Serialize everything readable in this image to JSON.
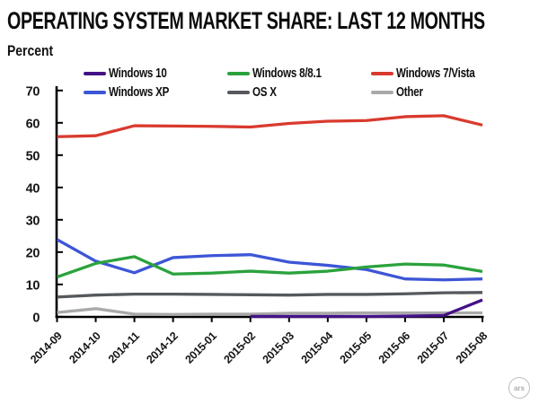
{
  "title": "OPERATING SYSTEM MARKET SHARE: LAST 12 MONTHS",
  "y_axis_title": "Percent",
  "logo_text": "ars",
  "chart_data": {
    "type": "line",
    "title": "OPERATING SYSTEM MARKET SHARE: LAST 12 MONTHS",
    "ylabel": "Percent",
    "xlabel": "",
    "ylim": [
      0,
      70
    ],
    "y_ticks": [
      0,
      10,
      20,
      30,
      40,
      50,
      60,
      70
    ],
    "grid": false,
    "legend_position": "top",
    "x_labels": [
      "2014-09",
      "2014-10",
      "2014-11",
      "2014-12",
      "2015-01",
      "2015-02",
      "2015-03",
      "2015-04",
      "2015-05",
      "2015-06",
      "2015-07",
      "2015-08"
    ],
    "legend_rows": [
      [
        "Windows 10",
        "Windows 8/8.1",
        "Windows 7/Vista"
      ],
      [
        "Windows XP",
        "OS X",
        "Other"
      ]
    ],
    "series": [
      {
        "name": "Windows 10",
        "color": "#441287",
        "values": [
          null,
          null,
          null,
          null,
          null,
          0.1,
          0.1,
          0.1,
          0.1,
          0.2,
          0.4,
          5.2
        ]
      },
      {
        "name": "Windows 8/8.1",
        "color": "#2aa23c",
        "values": [
          12.3,
          16.5,
          18.6,
          13.2,
          13.5,
          14.1,
          13.5,
          14.1,
          15.4,
          16.3,
          16.0,
          14.0
        ]
      },
      {
        "name": "Windows 7/Vista",
        "color": "#d93a2e",
        "values": [
          55.7,
          56.0,
          59.1,
          59.0,
          58.9,
          58.7,
          59.8,
          60.5,
          60.7,
          61.9,
          62.2,
          59.3
        ]
      },
      {
        "name": "Windows XP",
        "color": "#3d56d6",
        "values": [
          23.9,
          17.2,
          13.6,
          18.3,
          18.9,
          19.2,
          16.9,
          15.9,
          14.6,
          11.7,
          11.4,
          11.7
        ]
      },
      {
        "name": "OS X",
        "color": "#55585c",
        "values": [
          6.1,
          6.7,
          7.0,
          7.0,
          6.9,
          6.8,
          6.7,
          6.9,
          6.9,
          7.1,
          7.4,
          7.5
        ]
      },
      {
        "name": "Other",
        "color": "#a9a9a9",
        "values": [
          1.3,
          2.5,
          0.8,
          0.7,
          0.8,
          0.8,
          1.1,
          1.1,
          1.2,
          1.2,
          1.2,
          1.2
        ]
      }
    ],
    "draw_order": [
      "Other",
      "OS X",
      "Windows XP",
      "Windows 8/8.1",
      "Windows 7/Vista",
      "Windows 10"
    ]
  }
}
